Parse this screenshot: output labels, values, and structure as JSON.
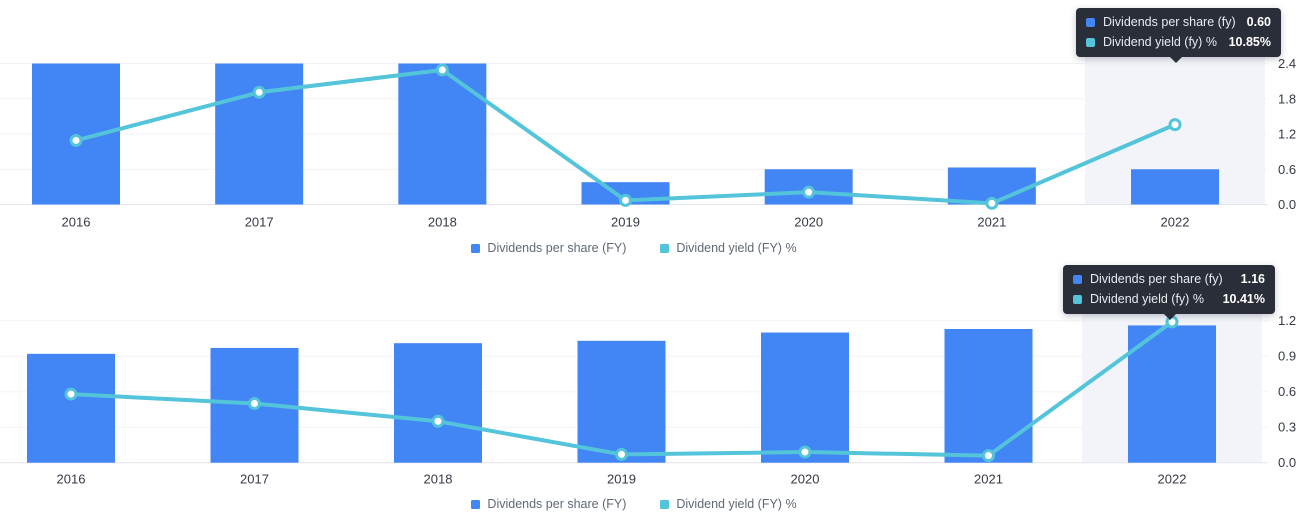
{
  "colors": {
    "bar": "#4285f4",
    "line": "#53c4da",
    "gridline": "#f1f3f8",
    "axis_line": "#e1e4ec",
    "highlight_band": "#f2f4f9",
    "tick_text": "#363a45",
    "legend_text": "#5f6975",
    "tooltip_bg": "#2a2e39",
    "tooltip_label_text": "#e8eaef",
    "tooltip_value_text": "#ffffff"
  },
  "charts": [
    {
      "legend": [
        {
          "label": "Dividends per share (FY)"
        },
        {
          "label": "Dividend yield (FY) %"
        }
      ],
      "tooltip": {
        "rows": [
          {
            "label": "Dividends per share (fy)",
            "value": "0.60"
          },
          {
            "label": "Dividend yield (fy) %",
            "value": "10.85%"
          }
        ]
      }
    },
    {
      "legend": [
        {
          "label": "Dividends per share (FY)"
        },
        {
          "label": "Dividend yield (FY) %"
        }
      ],
      "tooltip": {
        "rows": [
          {
            "label": "Dividends per share (fy)",
            "value": "1.16"
          },
          {
            "label": "Dividend yield (fy) %",
            "value": "10.41%"
          }
        ]
      }
    }
  ],
  "chart_data": [
    {
      "type": "bar+line",
      "categories": [
        "2016",
        "2017",
        "2018",
        "2019",
        "2020",
        "2021",
        "2022"
      ],
      "series": [
        {
          "name": "Dividends per share (FY)",
          "type": "bar",
          "values": [
            2.4,
            2.4,
            2.4,
            0.38,
            0.6,
            0.63,
            0.6
          ]
        },
        {
          "name": "Dividend yield (FY) %",
          "type": "line",
          "values": [
            1.09,
            1.91,
            2.29,
            0.07,
            0.21,
            0.02,
            1.36
          ]
        }
      ],
      "ylim": [
        0,
        2.4
      ],
      "yticks": [
        {
          "value": 2.4,
          "label": "2.4"
        },
        {
          "value": 1.8,
          "label": "1.8"
        },
        {
          "value": 1.2,
          "label": "1.2"
        },
        {
          "value": 0.6,
          "label": "0.6"
        },
        {
          "value": 0.0,
          "label": "0.0"
        }
      ],
      "grid": true,
      "legend_position": "bottom",
      "highlighted_category": "2022",
      "hover_tooltip": {
        "Dividends per share (fy)": "0.60",
        "Dividend yield (fy) %": "10.85%"
      }
    },
    {
      "type": "bar+line",
      "categories": [
        "2016",
        "2017",
        "2018",
        "2019",
        "2020",
        "2021",
        "2022"
      ],
      "series": [
        {
          "name": "Dividends per share (FY)",
          "type": "bar",
          "values": [
            0.92,
            0.97,
            1.01,
            1.03,
            1.1,
            1.13,
            1.16
          ]
        },
        {
          "name": "Dividend yield (FY) %",
          "type": "line",
          "values": [
            0.58,
            0.5,
            0.35,
            0.07,
            0.09,
            0.06,
            1.19
          ]
        }
      ],
      "ylim": [
        0,
        1.2
      ],
      "yticks": [
        {
          "value": 1.2,
          "label": "1.2"
        },
        {
          "value": 0.9,
          "label": "0.9"
        },
        {
          "value": 0.6,
          "label": "0.6"
        },
        {
          "value": 0.3,
          "label": "0.3"
        },
        {
          "value": 0.0,
          "label": "0.0"
        }
      ],
      "grid": true,
      "legend_position": "bottom",
      "highlighted_category": "2022",
      "hover_tooltip": {
        "Dividends per share (fy)": "1.16",
        "Dividend yield (fy) %": "10.41%"
      }
    }
  ]
}
